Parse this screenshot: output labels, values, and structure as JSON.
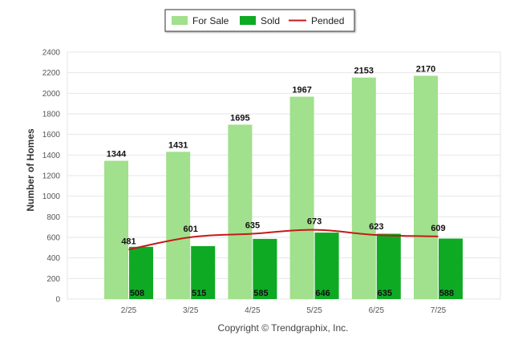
{
  "chart_data": {
    "type": "bar",
    "categories": [
      "2/25",
      "3/25",
      "4/25",
      "5/25",
      "6/25",
      "7/25"
    ],
    "series": [
      {
        "name": "For Sale",
        "kind": "bar",
        "color": "#a1e08c",
        "values": [
          1344,
          1431,
          1695,
          1967,
          2153,
          2170
        ]
      },
      {
        "name": "Sold",
        "kind": "bar",
        "color": "#0faa24",
        "values": [
          508,
          515,
          585,
          646,
          635,
          588
        ]
      },
      {
        "name": "Pended",
        "kind": "line",
        "color": "#c41a1a",
        "values": [
          481,
          601,
          635,
          673,
          623,
          609
        ]
      }
    ],
    "title": "",
    "xlabel": "",
    "ylabel": "Number of Homes",
    "ylim": [
      0,
      2400
    ],
    "yticks": [
      0,
      200,
      400,
      600,
      800,
      1000,
      1200,
      1400,
      1600,
      1800,
      2000,
      2200,
      2400
    ],
    "grid": true,
    "legend_position": "top-center"
  },
  "legend": {
    "for_sale": "For Sale",
    "sold": "Sold",
    "pended": "Pended"
  },
  "footer": {
    "copyright": "Copyright © Trendgraphix, Inc."
  }
}
